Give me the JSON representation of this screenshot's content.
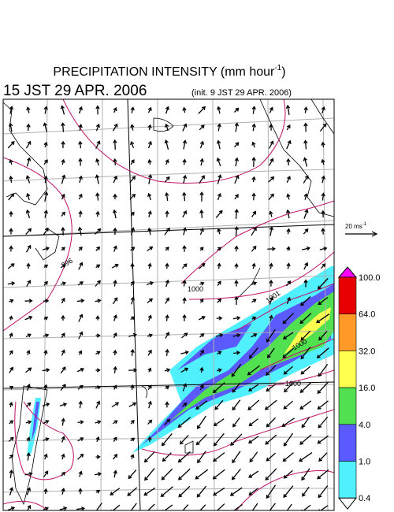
{
  "header": {
    "title": "PRECIPITATION INTENSITY (mm hour",
    "title_superscript": "-1",
    "title_close": ")",
    "valid_time": "15 JST 29 APR. 2006",
    "init_time": "(init. 9 JST 29 APR. 2006)"
  },
  "wind_legend": {
    "label": "20 ms",
    "superscript": "-1"
  },
  "colorbar": {
    "levels": [
      "100.0",
      "64.0",
      "32.0",
      "16.0",
      "4.0",
      "1.0",
      "0.4"
    ],
    "colors": [
      "#ff00ff",
      "#e80000",
      "#ff9a28",
      "#ffff50",
      "#50e050",
      "#5a5aff",
      "#50f0ff",
      "#ffffff"
    ]
  },
  "isobar_labels": [
    "996",
    "1000",
    "1001",
    "1000",
    "1000"
  ]
}
